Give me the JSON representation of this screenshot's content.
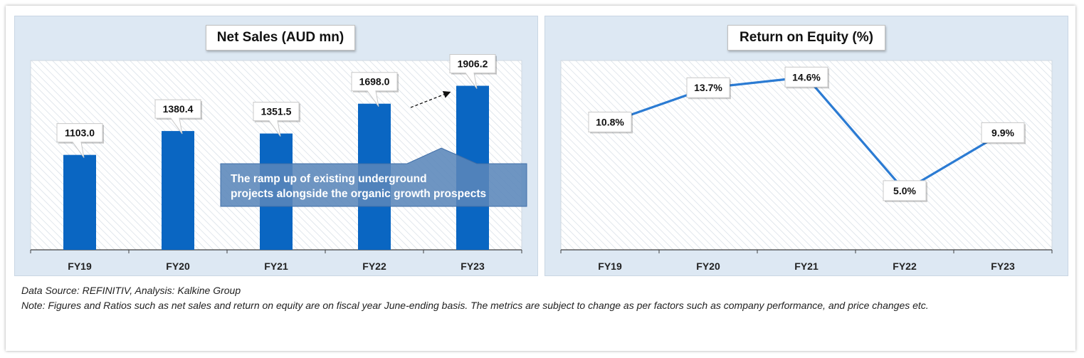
{
  "chart_data": [
    {
      "type": "bar",
      "title": "Net Sales (AUD mn)",
      "categories": [
        "FY19",
        "FY20",
        "FY21",
        "FY22",
        "FY23"
      ],
      "values": [
        1103.0,
        1380.4,
        1351.5,
        1698.0,
        1906.2
      ],
      "value_labels": [
        "1103.0",
        "1380.4",
        "1351.5",
        "1698.0",
        "1906.2"
      ],
      "ylim": [
        0,
        2200
      ],
      "grid": false,
      "annotation": "The ramp up of existing underground projects alongside the organic growth prospects",
      "colors": {
        "bar": "#0a66c2",
        "callout": "#5a86ba",
        "plot_bg": "#ffffff",
        "panel_bg": "#dde8f3"
      }
    },
    {
      "type": "line",
      "title": "Return on Equity (%)",
      "categories": [
        "FY19",
        "FY20",
        "FY21",
        "FY22",
        "FY23"
      ],
      "values": [
        10.8,
        13.7,
        14.6,
        5.0,
        9.9
      ],
      "value_labels": [
        "10.8%",
        "13.7%",
        "14.6%",
        "5.0%",
        "9.9%"
      ],
      "ylim": [
        0,
        16
      ],
      "grid": false,
      "colors": {
        "line": "#2b7bd3",
        "plot_bg": "#ffffff",
        "panel_bg": "#dde8f3"
      }
    }
  ],
  "footer": {
    "source": "Data Source: REFINITIV, Analysis: Kalkine Group",
    "note": "Note: Figures and Ratios such as net sales and return on equity are on fiscal year June-ending basis. The metrics are subject to change as per factors such as company performance, and price changes etc."
  }
}
